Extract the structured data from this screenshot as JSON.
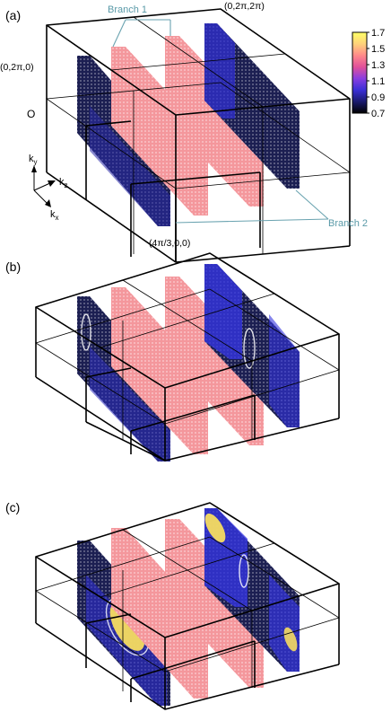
{
  "panels": [
    {
      "id": "a",
      "label": "(a)"
    },
    {
      "id": "b",
      "label": "(b)"
    },
    {
      "id": "c",
      "label": "(c)"
    }
  ],
  "coords": {
    "top_right": "(0,2π,2π)",
    "left": "(0,2π,0)",
    "origin": "O",
    "bottom": "(4π/3,0,0)"
  },
  "branches": {
    "branch1": "Branch 1",
    "branch2": "Branch 2"
  },
  "axes": {
    "ky": "k",
    "ky_sub": "y",
    "kz": "k",
    "kz_sub": "z",
    "kx": "k",
    "kx_sub": "x"
  },
  "colorbar": {
    "ticks": [
      "1.7",
      "1.5",
      "1.3",
      "1.1",
      "0.9",
      "0.7"
    ],
    "min": 0.7,
    "max": 1.7,
    "colors": [
      "#000000",
      "#1a1a6e",
      "#3b2fd6",
      "#8a3ee0",
      "#e0509a",
      "#ff8a8a",
      "#ffd27a",
      "#ffff66"
    ]
  },
  "sheet_colors": {
    "pink": "#f4979c",
    "navy": "#1c1f52",
    "blue": "#2b2bd0",
    "yellow": "#f6dc60"
  }
}
